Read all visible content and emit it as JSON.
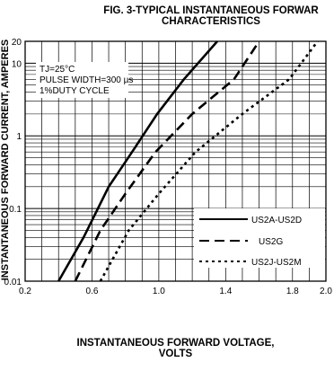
{
  "chart_data": {
    "type": "line",
    "title_lines": [
      "FIG. 3-TYPICAL INSTANTANEOUS FORWAR",
      "CHARACTERISTICS"
    ],
    "xlabel_lines": [
      "INSTANTANEOUS FORWARD VOLTAGE,",
      "VOLTS"
    ],
    "ylabel": "INSTANTANEOUS FORWARD CURRENT, AMPERES",
    "xlim": [
      0.2,
      2.0
    ],
    "ylim": [
      0.01,
      20
    ],
    "y_scale": "log",
    "grid": true,
    "x_ticks": [
      0.2,
      0.6,
      1.0,
      1.4,
      1.8,
      2.0
    ],
    "x_tick_labels": [
      "0.2",
      "0.6",
      "1.0",
      "1.4",
      "1.8",
      "2.0"
    ],
    "y_ticks": [
      0.01,
      0.1,
      1,
      10,
      20
    ],
    "y_tick_labels": [
      "0.01",
      "0.1",
      "1",
      "10",
      "20"
    ],
    "annotations": [
      "TJ=25°C",
      "PULSE WIDTH=300 µs",
      "1%DUTY CYCLE"
    ],
    "legend_position": "bottom-right",
    "series": [
      {
        "name": "US2A-US2D",
        "style": "solid",
        "x": [
          0.4,
          0.55,
          0.7,
          0.84,
          0.99,
          1.15,
          1.35
        ],
        "y": [
          0.01,
          0.04,
          0.2,
          0.6,
          2,
          6,
          20
        ]
      },
      {
        "name": "US2G",
        "style": "dashed",
        "x": [
          0.5,
          0.65,
          0.8,
          0.98,
          1.2,
          1.45,
          1.6
        ],
        "y": [
          0.01,
          0.05,
          0.16,
          0.6,
          2,
          6,
          20
        ]
      },
      {
        "name": "US2J-US2M",
        "style": "dotted",
        "x": [
          0.65,
          0.82,
          1.0,
          1.22,
          1.5,
          1.78,
          1.95
        ],
        "y": [
          0.01,
          0.05,
          0.16,
          0.6,
          2,
          6,
          20
        ]
      }
    ]
  }
}
